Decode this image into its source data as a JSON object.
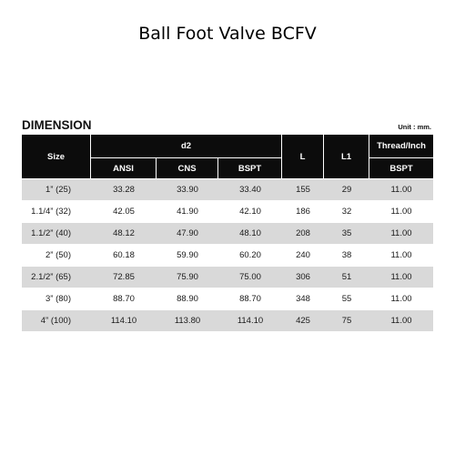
{
  "title": "Ball Foot Valve BCFV",
  "dimension": {
    "heading": "DIMENSION",
    "unit": "Unit : mm."
  },
  "table": {
    "headers": {
      "size": "Size",
      "d2": "d2",
      "ansi": "ANSI",
      "cns": "CNS",
      "bspt": "BSPT",
      "l": "L",
      "l1": "L1",
      "thread": "Thread/Inch",
      "thread_bspt": "BSPT"
    },
    "rows": [
      {
        "size": "1” (25)",
        "ansi": "33.28",
        "cns": "33.90",
        "bspt": "33.40",
        "l": "155",
        "l1": "29",
        "thread": "11.00"
      },
      {
        "size": "1.1/4” (32)",
        "ansi": "42.05",
        "cns": "41.90",
        "bspt": "42.10",
        "l": "186",
        "l1": "32",
        "thread": "11.00"
      },
      {
        "size": "1.1/2” (40)",
        "ansi": "48.12",
        "cns": "47.90",
        "bspt": "48.10",
        "l": "208",
        "l1": "35",
        "thread": "11.00"
      },
      {
        "size": "2” (50)",
        "ansi": "60.18",
        "cns": "59.90",
        "bspt": "60.20",
        "l": "240",
        "l1": "38",
        "thread": "11.00"
      },
      {
        "size": "2.1/2” (65)",
        "ansi": "72.85",
        "cns": "75.90",
        "bspt": "75.00",
        "l": "306",
        "l1": "51",
        "thread": "11.00"
      },
      {
        "size": "3” (80)",
        "ansi": "88.70",
        "cns": "88.90",
        "bspt": "88.70",
        "l": "348",
        "l1": "55",
        "thread": "11.00"
      },
      {
        "size": "4” (100)",
        "ansi": "114.10",
        "cns": "113.80",
        "bspt": "114.10",
        "l": "425",
        "l1": "75",
        "thread": "11.00"
      }
    ]
  },
  "colors": {
    "header_bg": "#0c0c0c",
    "row_shade": "#d9d9d9",
    "row_plain": "#ffffff"
  }
}
